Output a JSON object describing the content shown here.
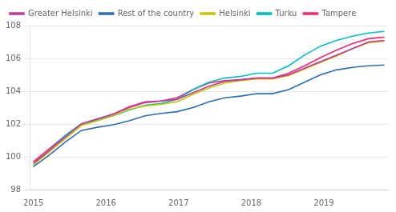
{
  "chart_data": {
    "type": "line",
    "x": [
      2015,
      2015.2196818181817,
      2015.4393636363636,
      2015.6590454545455,
      2015.8787272727272,
      2016.0984090909092,
      2016.3180909090909,
      2016.5377727272728,
      2016.7574545454545,
      2016.9771363636364,
      2017.1968181818181,
      2017.4165,
      2017.6361818181817,
      2017.8558636363637,
      2018.0755454545456,
      2018.2952272727273,
      2018.514909090909,
      2018.734590909091,
      2018.9542727272726,
      2019.1739545454545,
      2019.3936363636365,
      2019.6133181818182,
      2019.833
    ],
    "series": [
      {
        "name": "Greater Helsinki",
        "color": "#BF399E",
        "values": [
          99.6,
          100.4,
          101.2,
          102.0,
          102.3,
          102.6,
          103.0,
          103.3,
          103.4,
          103.5,
          103.9,
          104.3,
          104.6,
          104.7,
          104.8,
          104.8,
          105.0,
          105.4,
          105.8,
          106.2,
          106.6,
          107.0,
          107.1
        ]
      },
      {
        "name": "Rest of the country",
        "color": "#2B6DB5",
        "values": [
          99.4,
          100.1,
          100.9,
          101.6,
          101.8,
          101.95,
          102.2,
          102.5,
          102.65,
          102.75,
          103.0,
          103.35,
          103.6,
          103.7,
          103.85,
          103.85,
          104.1,
          104.55,
          105.0,
          105.3,
          105.45,
          105.55,
          105.6
        ]
      },
      {
        "name": "Helsinki",
        "color": "#C4C400",
        "values": [
          99.5,
          100.3,
          101.1,
          101.9,
          102.2,
          102.5,
          102.9,
          103.1,
          103.2,
          103.35,
          103.8,
          104.2,
          104.5,
          104.65,
          104.75,
          104.75,
          104.95,
          105.35,
          105.75,
          106.15,
          106.6,
          106.95,
          107.05
        ]
      },
      {
        "name": "Turku",
        "color": "#00BFBF",
        "values": [
          99.5,
          100.4,
          101.3,
          102.0,
          102.25,
          102.5,
          102.85,
          103.15,
          103.25,
          103.5,
          104.1,
          104.55,
          104.8,
          104.9,
          105.1,
          105.1,
          105.55,
          106.2,
          106.75,
          107.1,
          107.35,
          107.55,
          107.65
        ]
      },
      {
        "name": "Tampere",
        "color": "#F0286E",
        "values": [
          99.7,
          100.5,
          101.3,
          102.0,
          102.3,
          102.6,
          103.05,
          103.35,
          103.4,
          103.6,
          104.1,
          104.5,
          104.65,
          104.7,
          104.8,
          104.8,
          105.1,
          105.55,
          106.05,
          106.5,
          106.9,
          107.2,
          107.3
        ]
      }
    ],
    "xlim": [
      2014.95,
      2019.883
    ],
    "xticks": [
      2015,
      2016,
      2017,
      2018,
      2019
    ],
    "ylim": [
      98,
      108
    ],
    "yticks": [
      98,
      100,
      102,
      104,
      106,
      108
    ],
    "grid": "y",
    "legend": "upper left"
  }
}
